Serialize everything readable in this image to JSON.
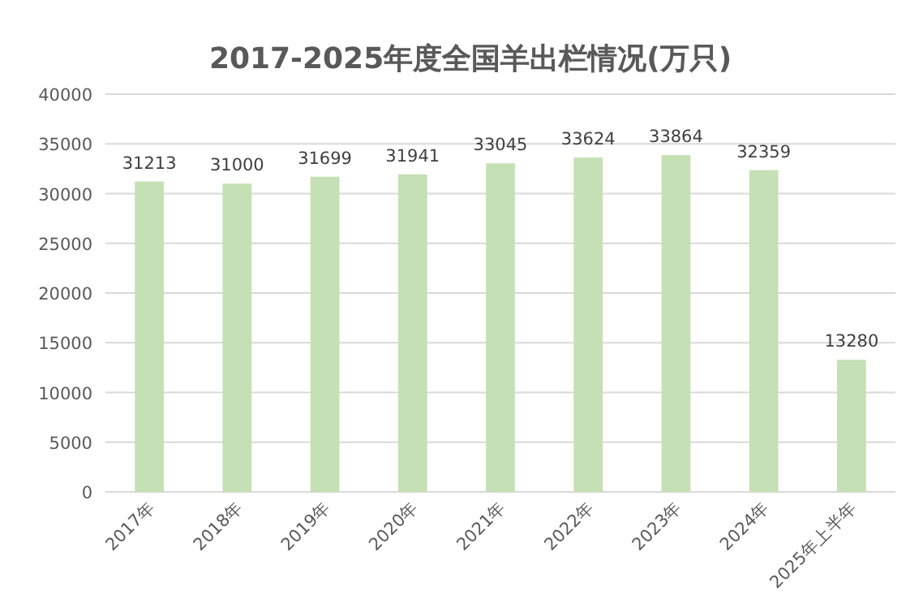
{
  "chart_data": {
    "type": "bar",
    "title": "2017-2025年度全国羊出栏情况(万只)",
    "categories": [
      "2017年",
      "2018年",
      "2019年",
      "2020年",
      "2021年",
      "2022年",
      "2023年",
      "2024年",
      "2025年上半年"
    ],
    "values": [
      31213,
      31000,
      31699,
      31941,
      33045,
      33624,
      33864,
      32359,
      13280
    ],
    "color": "#c5e0b4",
    "ylim": [
      0,
      40000
    ],
    "yticks": [
      0,
      5000,
      10000,
      15000,
      20000,
      25000,
      30000,
      35000,
      40000
    ],
    "grid": "y",
    "data_labels": true
  }
}
